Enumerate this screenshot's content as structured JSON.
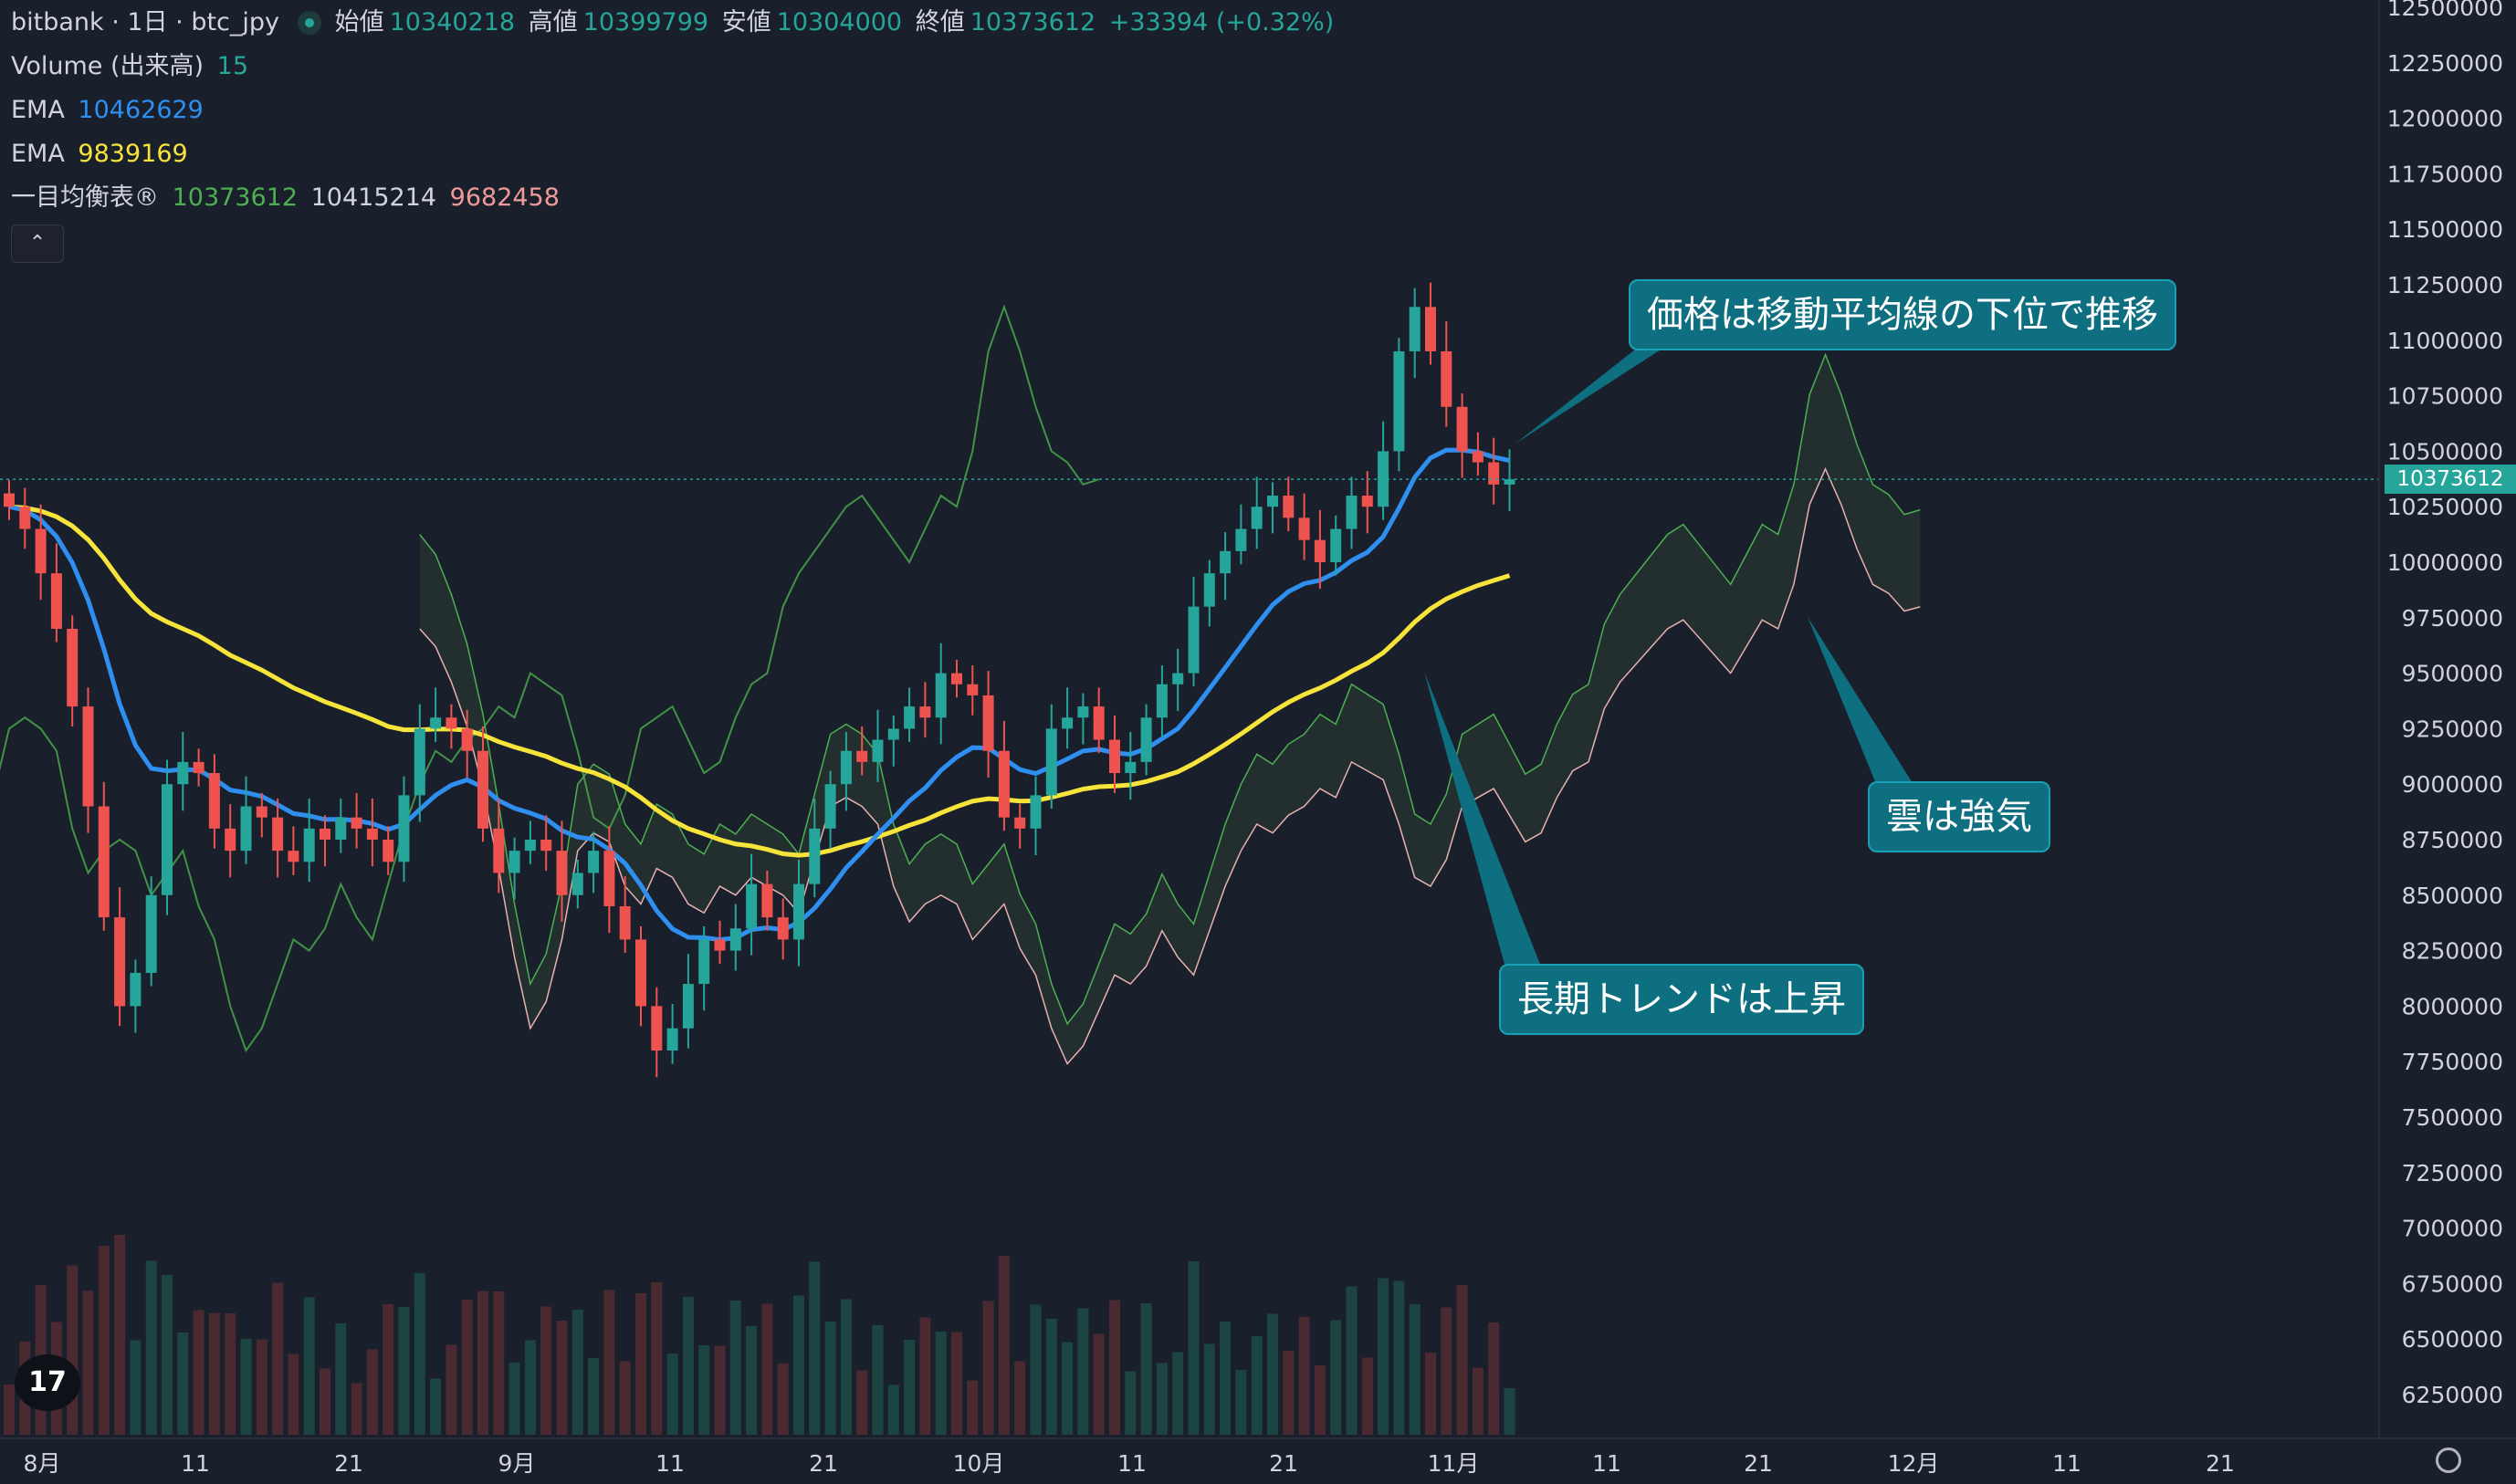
{
  "header": {
    "symbol": "bitbank · 1日 · btc_jpy",
    "open_label": "始値",
    "open": "10340218",
    "high_label": "高値",
    "high": "10399799",
    "low_label": "安値",
    "low": "10304000",
    "close_label": "終値",
    "close": "10373612",
    "change": "+33394 (+0.32%)"
  },
  "indicators": {
    "volume_label": "Volume (出来高)",
    "volume_value": "15",
    "ema1_label": "EMA",
    "ema1_value": "10462629",
    "ema2_label": "EMA",
    "ema2_value": "9839169",
    "ichimoku_label": "一目均衡表®",
    "ichimoku_v1": "10373612",
    "ichimoku_v2": "10415214",
    "ichimoku_v3": "9682458"
  },
  "colors": {
    "up": "#26a69a",
    "down": "#ef5350",
    "ema_fast": "#2f8ff0",
    "ema_slow": "#f7e43a",
    "conversion": "#4caf50",
    "base": "#e8b0b0",
    "callout": "#0e6f80",
    "background": "#1a1f2c"
  },
  "icons": {
    "collapse": "chevron-up-icon",
    "logo": "tradingview-logo",
    "settings": "gear-icon"
  },
  "collapse_glyph": "⌃",
  "logo_text": "17",
  "callouts": {
    "price": "価格は移動平均線の下位で推移",
    "cloud": "雲は強気",
    "trend": "長期トレンドは上昇"
  },
  "price_label": "10373612",
  "chart_data": {
    "type": "candlestick",
    "y_axis_ticks": [
      "12500000",
      "12250000",
      "12000000",
      "11750000",
      "11500000",
      "11250000",
      "11000000",
      "10750000",
      "10500000",
      "10250000",
      "10000000",
      "9750000",
      "9500000",
      "9250000",
      "9000000",
      "8750000",
      "8500000",
      "8250000",
      "8000000",
      "7750000",
      "7500000",
      "7250000",
      "7000000",
      "6750000",
      "6500000",
      "6250000"
    ],
    "ylim": [
      6100000,
      12550000
    ],
    "x_axis_ticks": [
      "8月",
      "11",
      "21",
      "9月",
      "11",
      "21",
      "10月",
      "11",
      "21",
      "11月",
      "11",
      "21",
      "12月",
      "11",
      "21"
    ],
    "last_price": 10373612,
    "close": [
      10250000,
      10150000,
      9950000,
      9700000,
      9350000,
      8900000,
      8400000,
      8000000,
      8150000,
      8500000,
      9000000,
      9100000,
      9050000,
      8800000,
      8700000,
      8900000,
      8850000,
      8700000,
      8650000,
      8800000,
      8750000,
      8850000,
      8800000,
      8750000,
      8650000,
      8950000,
      9250000,
      9300000,
      9250000,
      9150000,
      8800000,
      8600000,
      8700000,
      8750000,
      8700000,
      8500000,
      8600000,
      8700000,
      8450000,
      8300000,
      8000000,
      7800000,
      7900000,
      8100000,
      8300000,
      8250000,
      8350000,
      8550000,
      8400000,
      8300000,
      8550000,
      8800000,
      9000000,
      9150000,
      9100000,
      9200000,
      9250000,
      9350000,
      9300000,
      9500000,
      9450000,
      9400000,
      9150000,
      8850000,
      8800000,
      8950000,
      9250000,
      9300000,
      9350000,
      9200000,
      9050000,
      9100000,
      9300000,
      9450000,
      9500000,
      9800000,
      9950000,
      10050000,
      10150000,
      10250000,
      10300000,
      10200000,
      10100000,
      10000000,
      10150000,
      10300000,
      10250000,
      10500000,
      10950000,
      11150000,
      10950000,
      10700000,
      10500000,
      10450000,
      10350000,
      10373612
    ],
    "ema_fast_end": 10462629,
    "ema_slow_end": 9839169,
    "ichimoku": [
      10373612,
      10415214,
      9682458
    ],
    "volume_last": 15
  }
}
